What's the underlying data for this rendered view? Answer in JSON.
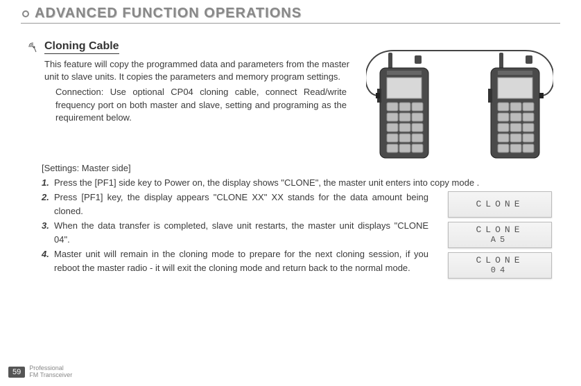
{
  "header": {
    "title": "ADVANCED FUNCTION OPERATIONS"
  },
  "section": {
    "title": "Cloning Cable",
    "intro": "This feature will copy the programmed data and parameters from the master unit to slave units. It copies the parameters and memory program settings.",
    "connection": "Connection: Use optional CP04 cloning cable, connect Read/write frequency port on both master and slave, setting and programing as the requirement below."
  },
  "settings_label": "[Settings: Master side]",
  "steps": [
    {
      "n": "1.",
      "text": "Press the [PF1] side key to Power on, the display shows \"CLONE\", the master unit  enters into copy mode ."
    },
    {
      "n": "2.",
      "text": "Press [PF1] key, the display appears \"CLONE XX\" XX stands for the data amount being cloned."
    },
    {
      "n": "3.",
      "text": " When the data transfer is completed, slave unit restarts, the master unit displays \"CLONE 04\"."
    },
    {
      "n": "4.",
      "text": "Master unit will remain in the cloning mode to prepare for the next cloning session, if you reboot the master radio - it will exit the cloning mode and return back to the normal mode."
    }
  ],
  "lcds": [
    {
      "line1": "CLONE",
      "line2": ""
    },
    {
      "line1": "CLONE",
      "line2": "A5"
    },
    {
      "line1": "CLONE",
      "line2": "04"
    }
  ],
  "footer": {
    "page": "59",
    "line1": "Professional",
    "line2": "FM Transceiver"
  },
  "diagram": {
    "radio_body_color": "#4a4a4a",
    "radio_outline": "#222",
    "screen_color": "#d8d8d8",
    "button_color": "#bcbcbc",
    "cable_color": "#444"
  }
}
